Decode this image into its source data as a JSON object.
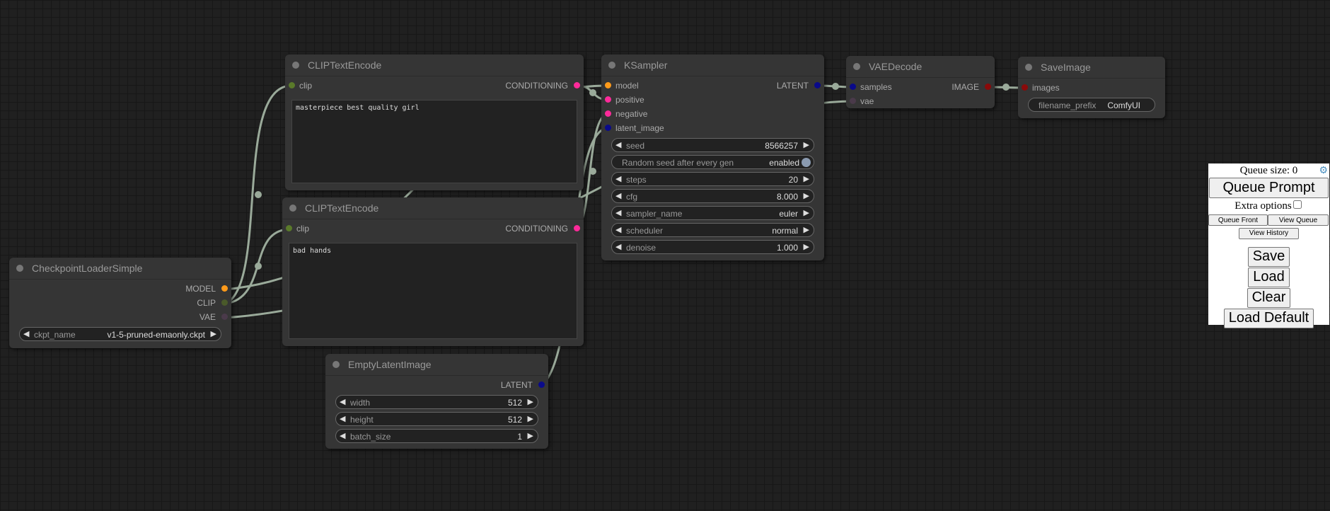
{
  "nodes": {
    "clip1": {
      "title": "CLIPTextEncode",
      "inputs": [
        {
          "label": "clip",
          "color": "#5a7a2a"
        }
      ],
      "outputs": [
        {
          "label": "CONDITIONING",
          "color": "#ff2a9a"
        }
      ],
      "text": "masterpiece best quality girl"
    },
    "clip2": {
      "title": "CLIPTextEncode",
      "inputs": [
        {
          "label": "clip",
          "color": "#5a7a2a"
        }
      ],
      "outputs": [
        {
          "label": "CONDITIONING",
          "color": "#ff2a9a"
        }
      ],
      "text": "bad hands"
    },
    "ckpt": {
      "title": "CheckpointLoaderSimple",
      "inputs": [],
      "outputs": [
        {
          "label": "MODEL",
          "color": "#ff9a1a"
        },
        {
          "label": "CLIP",
          "color": "#4a5a2a"
        },
        {
          "label": "VAE",
          "color": "#4a3a4a"
        }
      ],
      "widgets": [
        {
          "label": "ckpt_name",
          "value": "v1-5-pruned-emaonly.ckpt"
        }
      ]
    },
    "latent": {
      "title": "EmptyLatentImage",
      "inputs": [],
      "outputs": [
        {
          "label": "LATENT",
          "color": "#0a0a8a"
        }
      ],
      "widgets": [
        {
          "label": "width",
          "value": "512"
        },
        {
          "label": "height",
          "value": "512"
        },
        {
          "label": "batch_size",
          "value": "1"
        }
      ]
    },
    "ksampler": {
      "title": "KSampler",
      "inputs": [
        {
          "label": "model",
          "color": "#ff9a1a"
        },
        {
          "label": "positive",
          "color": "#ff2a9a"
        },
        {
          "label": "negative",
          "color": "#ff2a9a"
        },
        {
          "label": "latent_image",
          "color": "#0a0a8a"
        }
      ],
      "outputs": [
        {
          "label": "LATENT",
          "color": "#0a0a8a"
        }
      ],
      "widgets": [
        {
          "label": "seed",
          "value": "8566257"
        },
        {
          "label": "Random seed after every gen",
          "value": "enabled",
          "toggle": true
        },
        {
          "label": "steps",
          "value": "20"
        },
        {
          "label": "cfg",
          "value": "8.000"
        },
        {
          "label": "sampler_name",
          "value": "euler"
        },
        {
          "label": "scheduler",
          "value": "normal"
        },
        {
          "label": "denoise",
          "value": "1.000"
        }
      ]
    },
    "vae": {
      "title": "VAEDecode",
      "inputs": [
        {
          "label": "samples",
          "color": "#0a0a8a"
        },
        {
          "label": "vae",
          "color": "#4a3a4a"
        }
      ],
      "outputs": [
        {
          "label": "IMAGE",
          "color": "#8a0a0a"
        }
      ]
    },
    "save": {
      "title": "SaveImage",
      "inputs": [
        {
          "label": "images",
          "color": "#8a0a0a"
        }
      ],
      "outputs": [],
      "widgets": [
        {
          "label": "filename_prefix",
          "value": "ComfyUI",
          "text": true
        }
      ]
    }
  },
  "panel": {
    "queue_size": "Queue size: 0",
    "queue_prompt": "Queue Prompt",
    "extra_options": "Extra options",
    "queue_front": "Queue Front",
    "view_queue": "View Queue",
    "view_history": "View History",
    "save": "Save",
    "load": "Load",
    "clear": "Clear",
    "load_default": "Load Default"
  },
  "link_color": "#9aaa9a"
}
